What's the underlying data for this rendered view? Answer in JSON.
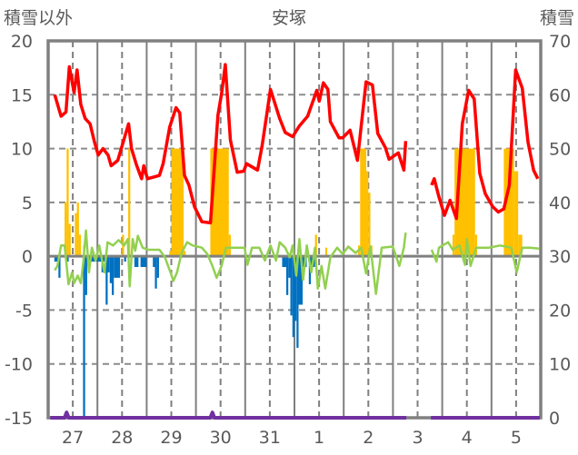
{
  "chart_data": {
    "type": "bar+line",
    "title": "安塚",
    "ylabel_left": "積雪以外",
    "ylabel_right": "積雪",
    "ylim_left": [
      -15,
      20
    ],
    "ylim_right": [
      0,
      70
    ],
    "yticks_left": [
      "20",
      "15",
      "10",
      "5",
      "0",
      "-5",
      "-10",
      "-15"
    ],
    "yticks_right": [
      "70",
      "60",
      "50",
      "40",
      "30",
      "20",
      "10",
      "0"
    ],
    "x_unit": "hours since day 27 00:00",
    "xlim": [
      0,
      240
    ],
    "xtick_labels": [
      "27",
      "28",
      "29",
      "30",
      "31",
      "1",
      "2",
      "3",
      "4",
      "5"
    ],
    "grid": true,
    "colors": {
      "temperature": "#FF0000",
      "positive_bars": "#FFC000",
      "negative_bars": "#0070C0",
      "green_line": "#92D050",
      "snow_depth": "#7030A0",
      "axis": "#808080"
    },
    "series": [
      {
        "name": "red-line",
        "axis": "left",
        "segments": [
          [
            [
              3.2,
              15
            ],
            [
              6.3,
              13
            ],
            [
              8.7,
              13.4
            ],
            [
              10.3,
              17.6
            ],
            [
              12.6,
              15.2
            ],
            [
              14.1,
              17.3
            ],
            [
              15.9,
              14.1
            ],
            [
              18,
              12.8
            ],
            [
              20.4,
              12.3
            ],
            [
              22.6,
              10.6
            ],
            [
              24.4,
              9.4
            ],
            [
              26.7,
              10
            ],
            [
              29.2,
              9.4
            ],
            [
              30.7,
              8.4
            ],
            [
              33.9,
              8.9
            ],
            [
              36.1,
              10.3
            ],
            [
              39.2,
              12.3
            ],
            [
              40.6,
              10
            ],
            [
              43,
              8.5
            ],
            [
              45.5,
              7.2
            ],
            [
              46.6,
              8.4
            ],
            [
              48.4,
              7.2
            ],
            [
              54.2,
              7.5
            ],
            [
              56,
              8.6
            ],
            [
              59.2,
              12
            ],
            [
              62.3,
              13.8
            ],
            [
              64.1,
              13.3
            ],
            [
              66.4,
              7.5
            ],
            [
              68.6,
              6.6
            ],
            [
              71.3,
              4.6
            ],
            [
              74.9,
              3.2
            ],
            [
              79.1,
              3.1
            ],
            [
              82.7,
              13.1
            ],
            [
              84.5,
              15.1
            ],
            [
              86.3,
              17.8
            ],
            [
              88.8,
              10.8
            ],
            [
              92.1,
              7.8
            ],
            [
              95.3,
              7.9
            ],
            [
              96.6,
              8.6
            ],
            [
              102,
              8
            ],
            [
              104.3,
              10.3
            ],
            [
              108.3,
              15.5
            ],
            [
              112.8,
              12.8
            ],
            [
              115.5,
              11.5
            ],
            [
              119.1,
              11.1
            ],
            [
              122.4,
              12.1
            ],
            [
              126.4,
              13
            ],
            [
              130.9,
              15.4
            ],
            [
              132.1,
              14.4
            ],
            [
              134.1,
              16.1
            ],
            [
              136.3,
              15.5
            ],
            [
              137.5,
              12.5
            ],
            [
              141.7,
              11
            ],
            [
              143.5,
              11
            ],
            [
              147.1,
              11.7
            ],
            [
              150.7,
              8.9
            ],
            [
              154.9,
              16.2
            ],
            [
              158,
              15.9
            ],
            [
              160.6,
              11.4
            ],
            [
              164.3,
              10.1
            ],
            [
              166.1,
              9
            ],
            [
              170.6,
              9.6
            ],
            [
              173.3,
              8
            ],
            [
              174.2,
              10.7
            ]
          ],
          [
            [
              186.8,
              6.6
            ],
            [
              188.1,
              7.2
            ],
            [
              190.4,
              5.5
            ],
            [
              193.1,
              3.8
            ],
            [
              195.8,
              5.2
            ],
            [
              198.9,
              3.5
            ],
            [
              201.8,
              12.3
            ],
            [
              204.9,
              15.4
            ],
            [
              207.6,
              14.6
            ],
            [
              210.3,
              7.7
            ],
            [
              213,
              5.8
            ],
            [
              216.6,
              4.6
            ],
            [
              219.3,
              4.1
            ],
            [
              222,
              4.4
            ],
            [
              224.7,
              6.6
            ],
            [
              227.8,
              17.3
            ],
            [
              231,
              15.6
            ],
            [
              233.8,
              10.6
            ],
            [
              236.5,
              8
            ],
            [
              238.6,
              7.2
            ]
          ]
        ]
      },
      {
        "name": "green-line",
        "axis": "left",
        "segments": [
          [
            [
              3.2,
              -1.3
            ],
            [
              4.5,
              -0.9
            ],
            [
              6.3,
              1
            ],
            [
              8,
              1
            ],
            [
              9.9,
              -2.6
            ],
            [
              11.7,
              -1.5
            ],
            [
              12.6,
              -2.5
            ],
            [
              14.4,
              -1.8
            ],
            [
              15.9,
              -2.5
            ],
            [
              17.1,
              -0.6
            ],
            [
              18.4,
              2.4
            ],
            [
              19.9,
              -1.5
            ],
            [
              21.3,
              0.8
            ],
            [
              23.1,
              -0.4
            ],
            [
              24.9,
              1
            ],
            [
              27.4,
              -1.5
            ],
            [
              28.9,
              1.3
            ],
            [
              31.6,
              1
            ],
            [
              34.3,
              1.5
            ],
            [
              37,
              1
            ],
            [
              38.8,
              1.6
            ],
            [
              39.7,
              -2.8
            ],
            [
              41.2,
              1.6
            ],
            [
              42.4,
              0.5
            ],
            [
              43.7,
              1.9
            ],
            [
              46,
              0.8
            ],
            [
              48.7,
              0.6
            ],
            [
              54.2,
              0.6
            ],
            [
              56.9,
              -0.1
            ],
            [
              59.6,
              -1.5
            ],
            [
              61,
              -2.3
            ],
            [
              62.8,
              -1.5
            ],
            [
              65,
              0.3
            ],
            [
              67.7,
              1.3
            ],
            [
              70.4,
              1
            ],
            [
              74.9,
              0.8
            ],
            [
              77.6,
              0.2
            ],
            [
              80,
              -0.9
            ],
            [
              82.1,
              -2
            ],
            [
              84.5,
              -0.9
            ],
            [
              86.6,
              0.8
            ],
            [
              90.3,
              0.8
            ],
            [
              95.7,
              0.8
            ],
            [
              97.1,
              -0.8
            ],
            [
              99.3,
              0.8
            ],
            [
              102.9,
              0.8
            ],
            [
              105.6,
              -0.4
            ],
            [
              108.3,
              1
            ],
            [
              111,
              -0.4
            ],
            [
              112.8,
              1.3
            ],
            [
              115.5,
              0.8
            ],
            [
              117.7,
              -0.1
            ],
            [
              119.1,
              1
            ],
            [
              120.9,
              -1.8
            ],
            [
              122.4,
              1.6
            ],
            [
              124.2,
              -2.2
            ],
            [
              126,
              1
            ],
            [
              128.2,
              -1.5
            ],
            [
              130,
              0.8
            ],
            [
              131.4,
              -3
            ],
            [
              133.2,
              -0.9
            ],
            [
              135,
              -3
            ],
            [
              137.5,
              -0.1
            ],
            [
              140.8,
              0.8
            ],
            [
              143.5,
              0.2
            ],
            [
              146.2,
              0.9
            ],
            [
              149.8,
              0.3
            ],
            [
              152.5,
              0.8
            ],
            [
              154.9,
              -1.6
            ],
            [
              157,
              0.9
            ],
            [
              159.7,
              -3.5
            ],
            [
              162.5,
              0.8
            ],
            [
              167.9,
              0.9
            ],
            [
              171.1,
              -0.9
            ],
            [
              173.3,
              0.8
            ],
            [
              174.2,
              2.2
            ]
          ],
          [
            [
              186.8,
              0.6
            ],
            [
              189.2,
              -0.5
            ],
            [
              190.4,
              0.8
            ],
            [
              194.9,
              1.3
            ],
            [
              197.1,
              0.6
            ],
            [
              200.4,
              1
            ],
            [
              203.1,
              -0.8
            ],
            [
              204,
              1.6
            ],
            [
              205.8,
              -0.9
            ],
            [
              208.5,
              0.8
            ],
            [
              214.8,
              0.8
            ],
            [
              220.2,
              1
            ],
            [
              225.6,
              0.8
            ],
            [
              228.3,
              -1.5
            ],
            [
              231,
              0.8
            ],
            [
              234.7,
              0.8
            ],
            [
              239.2,
              0.7
            ]
          ]
        ]
      },
      {
        "name": "snow-depth",
        "axis": "right",
        "segments": [
          [
            [
              1,
              0
            ],
            [
              8,
              0
            ],
            [
              9,
              1
            ],
            [
              10,
              0
            ],
            [
              79,
              0
            ],
            [
              80,
              1
            ],
            [
              81,
              0
            ],
            [
              174.5,
              0
            ]
          ],
          [
            [
              186.5,
              0
            ],
            [
              239.5,
              0
            ]
          ]
        ]
      }
    ],
    "positive_bars": [
      [
        8,
        9,
        5
      ],
      [
        9,
        10,
        10
      ],
      [
        10,
        11,
        3
      ],
      [
        13,
        14,
        4
      ],
      [
        14,
        15,
        5
      ],
      [
        15,
        16,
        2
      ],
      [
        17,
        18,
        1
      ],
      [
        36,
        37,
        2
      ],
      [
        39,
        40,
        10
      ],
      [
        59,
        60,
        0.5
      ],
      [
        60,
        66,
        10
      ],
      [
        66,
        67,
        0.5
      ],
      [
        79,
        88,
        10
      ],
      [
        88,
        89,
        2
      ],
      [
        130,
        131,
        2
      ],
      [
        135,
        136,
        0.8
      ],
      [
        151,
        152,
        1
      ],
      [
        152,
        155,
        10
      ],
      [
        155,
        156,
        7.9
      ],
      [
        156,
        157,
        5.9
      ],
      [
        157,
        158,
        1
      ],
      [
        197,
        198,
        2
      ],
      [
        198,
        208,
        10
      ],
      [
        208,
        209,
        2
      ],
      [
        222,
        227,
        10
      ],
      [
        227,
        229,
        7.9
      ],
      [
        229,
        231,
        2
      ]
    ],
    "negative_bars": [
      [
        3,
        5,
        -0.5
      ],
      [
        5,
        6,
        -2
      ],
      [
        9,
        10,
        -0.5
      ],
      [
        17,
        18,
        -15
      ],
      [
        18,
        19,
        -3.6
      ],
      [
        19,
        26,
        -0.5
      ],
      [
        26,
        27,
        -1.5
      ],
      [
        27,
        28,
        -0.5
      ],
      [
        28,
        29,
        -4.5
      ],
      [
        29,
        30,
        -1.5
      ],
      [
        30,
        31,
        -2.5
      ],
      [
        31,
        32,
        -3.6
      ],
      [
        32,
        35,
        -2
      ],
      [
        37,
        38,
        -0.5
      ],
      [
        42,
        44,
        -1
      ],
      [
        45,
        48,
        -1
      ],
      [
        51,
        52,
        -1
      ],
      [
        52,
        53,
        -3
      ],
      [
        53,
        54,
        -2
      ],
      [
        114,
        116,
        -1
      ],
      [
        116,
        117,
        -3.6
      ],
      [
        117,
        118,
        -2
      ],
      [
        118,
        119,
        -5.5
      ],
      [
        119,
        120,
        -7.5
      ],
      [
        120,
        121,
        -6
      ],
      [
        121,
        122,
        -8.5
      ],
      [
        122,
        124,
        -4.5
      ],
      [
        124,
        126,
        -1
      ],
      [
        127,
        128,
        -2.6
      ],
      [
        128,
        130,
        -1
      ]
    ]
  }
}
